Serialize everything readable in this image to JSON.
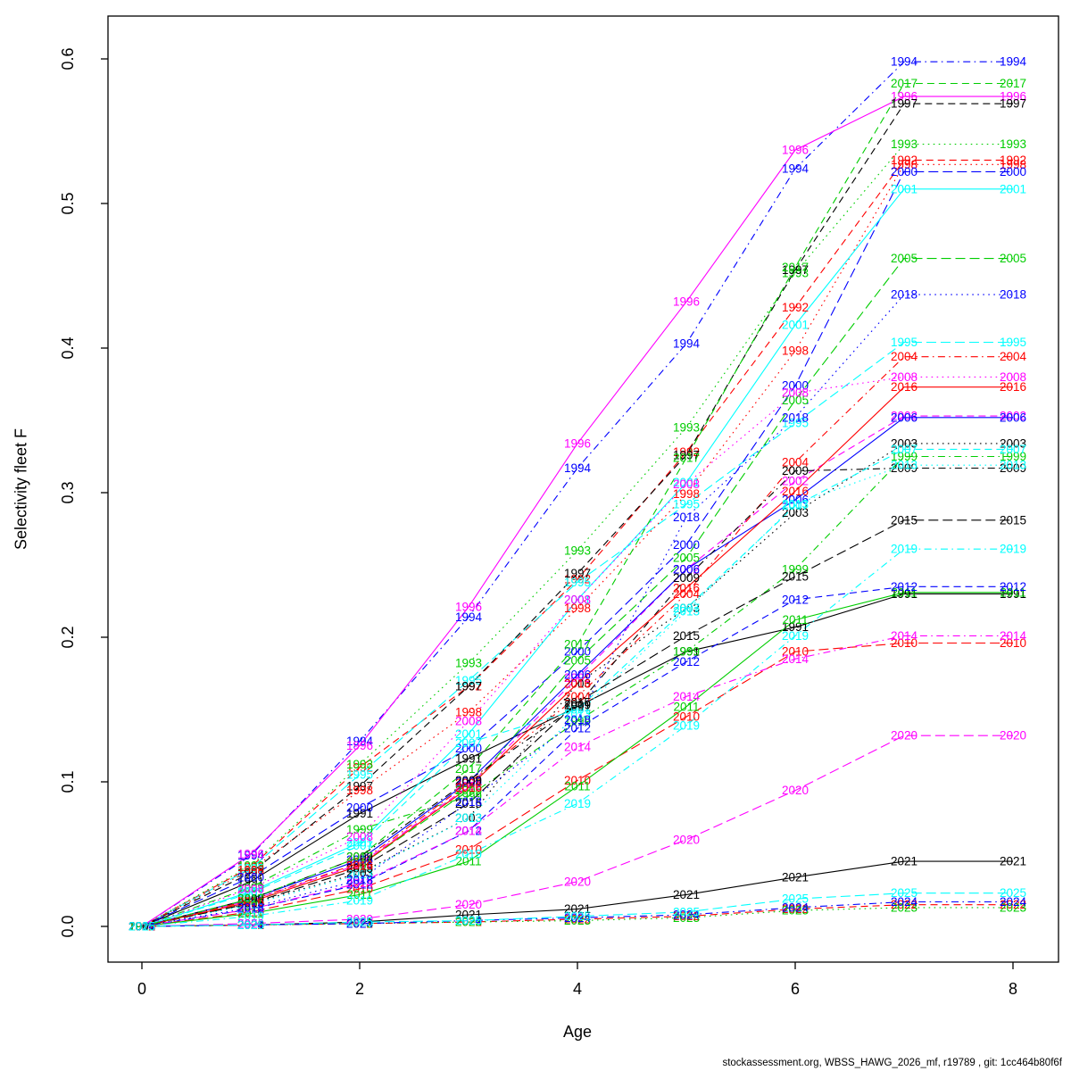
{
  "footer": "stockassessment.org, WBSS_HAWG_2026_mf, r19789 , git: 1cc464b80f6f",
  "chart_data": {
    "type": "line",
    "title": "",
    "xlabel": "Age",
    "ylabel": "Selectivity fleet F",
    "xlim": [
      0,
      8
    ],
    "ylim": [
      0.0,
      0.6
    ],
    "xticks": [
      0,
      2,
      4,
      6,
      8
    ],
    "ytick_labels": [
      "0.0",
      "0.1",
      "0.2",
      "0.3",
      "0.4",
      "0.5",
      "0.6"
    ],
    "yticks": [
      0.0,
      0.1,
      0.2,
      0.3,
      0.4,
      0.5,
      0.6
    ],
    "grid": false,
    "legend": "labels-at-points",
    "x": [
      0,
      1,
      2,
      3,
      4,
      5,
      6,
      7,
      8
    ],
    "palette": {
      "black": "#000000",
      "red": "#FF0000",
      "green": "#00CD00",
      "blue": "#0000FF",
      "cyan": "#00FFFF",
      "magenta": "#FF00FF"
    },
    "series": [
      {
        "name": "1991",
        "color": "#000000",
        "linetype": "solid",
        "values": [
          0,
          0.031,
          0.078,
          0.116,
          0.152,
          0.19,
          0.207,
          0.23,
          0.23
        ]
      },
      {
        "name": "1992",
        "color": "#FF0000",
        "linetype": "dashed",
        "values": [
          0,
          0.041,
          0.11,
          0.166,
          0.24,
          0.328,
          0.428,
          0.53,
          0.53
        ]
      },
      {
        "name": "1993",
        "color": "#00CD00",
        "linetype": "dotted",
        "values": [
          0,
          0.042,
          0.112,
          0.182,
          0.26,
          0.345,
          0.452,
          0.541,
          0.541
        ]
      },
      {
        "name": "1994",
        "color": "#0000FF",
        "linetype": "dotdash",
        "values": [
          0,
          0.049,
          0.128,
          0.214,
          0.317,
          0.403,
          0.524,
          0.598,
          0.598
        ]
      },
      {
        "name": "1995",
        "color": "#00FFFF",
        "linetype": "longdash",
        "values": [
          0,
          0.04,
          0.105,
          0.17,
          0.238,
          0.292,
          0.348,
          0.404,
          0.404
        ]
      },
      {
        "name": "1996",
        "color": "#FF00FF",
        "linetype": "solid",
        "values": [
          0,
          0.05,
          0.125,
          0.221,
          0.334,
          0.432,
          0.537,
          0.574,
          0.574
        ]
      },
      {
        "name": "1997",
        "color": "#000000",
        "linetype": "dashed",
        "values": [
          0,
          0.037,
          0.097,
          0.166,
          0.244,
          0.326,
          0.454,
          0.569,
          0.569
        ]
      },
      {
        "name": "1998",
        "color": "#FF0000",
        "linetype": "dotted",
        "values": [
          0,
          0.039,
          0.094,
          0.148,
          0.22,
          0.299,
          0.398,
          0.527,
          0.527
        ]
      },
      {
        "name": "1999",
        "color": "#00CD00",
        "linetype": "dotdash",
        "values": [
          0,
          0.027,
          0.067,
          0.09,
          0.142,
          0.19,
          0.247,
          0.325,
          0.325
        ]
      },
      {
        "name": "2000",
        "color": "#0000FF",
        "linetype": "longdash",
        "values": [
          0,
          0.034,
          0.082,
          0.123,
          0.19,
          0.264,
          0.374,
          0.522,
          0.522
        ]
      },
      {
        "name": "2001",
        "color": "#00FFFF",
        "linetype": "solid",
        "values": [
          0,
          0.024,
          0.058,
          0.133,
          0.226,
          0.307,
          0.416,
          0.51,
          0.51
        ]
      },
      {
        "name": "2002",
        "color": "#FF00FF",
        "linetype": "dashed",
        "values": [
          0,
          0.018,
          0.043,
          0.097,
          0.172,
          0.247,
          0.308,
          0.353,
          0.353
        ]
      },
      {
        "name": "2003",
        "color": "#000000",
        "linetype": "dotted",
        "values": [
          0,
          0.016,
          0.037,
          0.075,
          0.168,
          0.22,
          0.286,
          0.334,
          0.334
        ]
      },
      {
        "name": "2004",
        "color": "#FF0000",
        "linetype": "dotdash",
        "values": [
          0,
          0.018,
          0.044,
          0.099,
          0.159,
          0.23,
          0.321,
          0.394,
          0.394
        ]
      },
      {
        "name": "2005",
        "color": "#00CD00",
        "linetype": "longdash",
        "values": [
          0,
          0.017,
          0.042,
          0.094,
          0.184,
          0.255,
          0.364,
          0.462,
          0.462
        ]
      },
      {
        "name": "2006",
        "color": "#0000FF",
        "linetype": "solid",
        "values": [
          0,
          0.019,
          0.046,
          0.1,
          0.174,
          0.247,
          0.295,
          0.352,
          0.352
        ]
      },
      {
        "name": "2007",
        "color": "#00FFFF",
        "linetype": "dashed",
        "values": [
          0,
          0.023,
          0.056,
          0.127,
          0.15,
          0.22,
          0.291,
          0.33,
          0.33
        ]
      },
      {
        "name": "2008",
        "color": "#FF00FF",
        "linetype": "dotted",
        "values": [
          0,
          0.026,
          0.062,
          0.142,
          0.226,
          0.306,
          0.369,
          0.38,
          0.38
        ]
      },
      {
        "name": "2009",
        "color": "#000000",
        "linetype": "dotdash",
        "values": [
          0,
          0.019,
          0.048,
          0.101,
          0.153,
          0.241,
          0.315,
          0.317,
          0.317
        ]
      },
      {
        "name": "2010",
        "color": "#FF0000",
        "linetype": "longdash",
        "values": [
          0,
          0.01,
          0.026,
          0.053,
          0.101,
          0.145,
          0.19,
          0.196,
          0.196
        ]
      },
      {
        "name": "2011",
        "color": "#00CD00",
        "linetype": "solid",
        "values": [
          0,
          0.009,
          0.022,
          0.045,
          0.097,
          0.152,
          0.212,
          0.231,
          0.231
        ]
      },
      {
        "name": "2012",
        "color": "#0000FF",
        "linetype": "dashed",
        "values": [
          0,
          0.012,
          0.029,
          0.066,
          0.137,
          0.183,
          0.226,
          0.235,
          0.235
        ]
      },
      {
        "name": "2013",
        "color": "#00FFFF",
        "linetype": "dotted",
        "values": [
          0,
          0.015,
          0.036,
          0.075,
          0.147,
          0.218,
          0.292,
          0.319,
          0.319
        ]
      },
      {
        "name": "2014",
        "color": "#FF00FF",
        "linetype": "dotdash",
        "values": [
          0,
          0.012,
          0.03,
          0.066,
          0.124,
          0.159,
          0.185,
          0.201,
          0.201
        ]
      },
      {
        "name": "2015",
        "color": "#000000",
        "linetype": "longdash",
        "values": [
          0,
          0.016,
          0.04,
          0.085,
          0.155,
          0.201,
          0.242,
          0.281,
          0.281
        ]
      },
      {
        "name": "2016",
        "color": "#FF0000",
        "linetype": "solid",
        "values": [
          0,
          0.017,
          0.042,
          0.096,
          0.168,
          0.234,
          0.301,
          0.373,
          0.373
        ]
      },
      {
        "name": "2017",
        "color": "#00CD00",
        "linetype": "dashed",
        "values": [
          0,
          0.019,
          0.048,
          0.109,
          0.195,
          0.324,
          0.456,
          0.583,
          0.583
        ]
      },
      {
        "name": "2018",
        "color": "#0000FF",
        "linetype": "dotted",
        "values": [
          0,
          0.013,
          0.032,
          0.086,
          0.143,
          0.283,
          0.352,
          0.437,
          0.437
        ]
      },
      {
        "name": "2019",
        "color": "#00FFFF",
        "linetype": "dotdash",
        "values": [
          0,
          0.007,
          0.018,
          0.05,
          0.085,
          0.139,
          0.201,
          0.261,
          0.261
        ]
      },
      {
        "name": "2020",
        "color": "#FF00FF",
        "linetype": "longdash",
        "values": [
          0,
          0.002,
          0.005,
          0.015,
          0.031,
          0.06,
          0.094,
          0.132,
          0.132
        ]
      },
      {
        "name": "2021",
        "color": "#000000",
        "linetype": "solid",
        "values": [
          0,
          0.001,
          0.003,
          0.008,
          0.012,
          0.022,
          0.034,
          0.045,
          0.045
        ]
      },
      {
        "name": "2022",
        "color": "#FF0000",
        "linetype": "dashed",
        "values": [
          0,
          0.001,
          0.002,
          0.003,
          0.005,
          0.007,
          0.012,
          0.015,
          0.015
        ]
      },
      {
        "name": "2023",
        "color": "#00CD00",
        "linetype": "dotted",
        "values": [
          0,
          0.001,
          0.002,
          0.003,
          0.004,
          0.006,
          0.011,
          0.013,
          0.013
        ]
      },
      {
        "name": "2024",
        "color": "#0000FF",
        "linetype": "dotdash",
        "values": [
          0,
          0.001,
          0.002,
          0.004,
          0.006,
          0.008,
          0.013,
          0.017,
          0.017
        ]
      },
      {
        "name": "2025",
        "color": "#00FFFF",
        "linetype": "longdash",
        "values": [
          0,
          0.001,
          0.003,
          0.004,
          0.007,
          0.01,
          0.019,
          0.023,
          0.023
        ]
      }
    ]
  }
}
